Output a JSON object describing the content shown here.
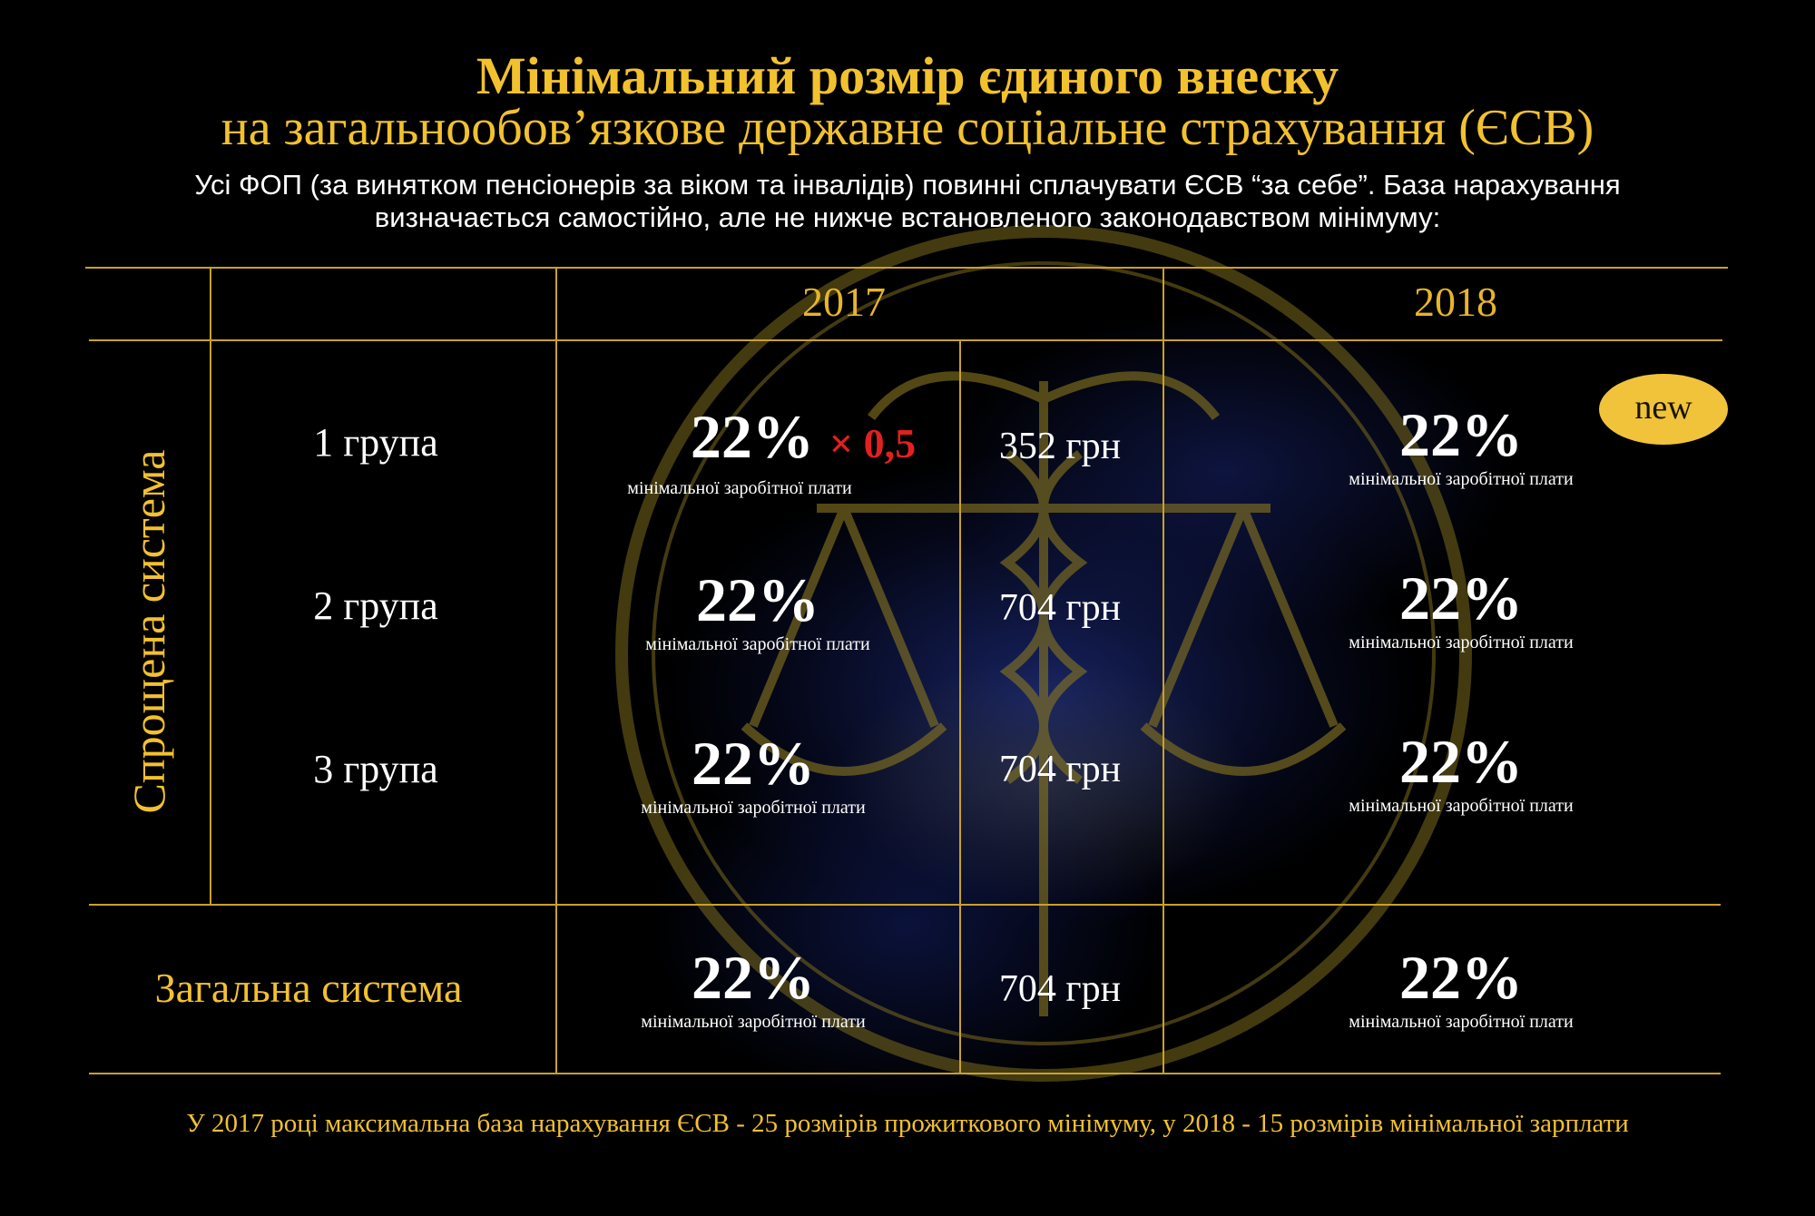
{
  "title": {
    "line1": "Мінімальний розмір єдиного внеску",
    "line2": "на загальнообов’язкове державне соціальне страхування (ЄСВ)"
  },
  "intro": {
    "line1": "Усі ФОП (за винятком пенсіонерів за віком та інвалідів) повинні сплачувати ЄСВ “за себе”. База нарахування",
    "line2": "визначається самостійно, але не нижче встановленого законодавством мінімуму:"
  },
  "years": {
    "y2017": "2017",
    "y2018": "2018"
  },
  "simplified_label": "Спрощена система",
  "general_label": "Загальна система",
  "badge": "new",
  "rows": [
    {
      "group": "1 група",
      "pct2017": "22%",
      "multiplier": "× 0,5",
      "sub2017": "мінімальної заробітної плати",
      "amount": "352 грн",
      "pct2018": "22%",
      "sub2018": "мінімальної заробітної плати"
    },
    {
      "group": "2 група",
      "pct2017": "22%",
      "sub2017": "мінімальної заробітної плати",
      "amount": "704 грн",
      "pct2018": "22%",
      "sub2018": "мінімальної заробітної плати"
    },
    {
      "group": "3 група",
      "pct2017": "22%",
      "sub2017": "мінімальної заробітної плати",
      "amount": "704 грн",
      "pct2018": "22%",
      "sub2018": "мінімальної заробітної плати"
    },
    {
      "pct2017": "22%",
      "sub2017": "мінімальної заробітної плати",
      "amount": "704 грн",
      "pct2018": "22%",
      "sub2018": "мінімальної заробітної плати"
    }
  ],
  "footer": "У 2017 році максимальна база нарахування ЄСВ - 25 розмірів прожиткового мінімуму, у 2018 - 15 розмірів мінімальної зарплати",
  "colors": {
    "gold": "#f2c12e",
    "line": "#c9a227",
    "red": "#e32020",
    "badge": "#f0c33a",
    "background": "#000000"
  }
}
